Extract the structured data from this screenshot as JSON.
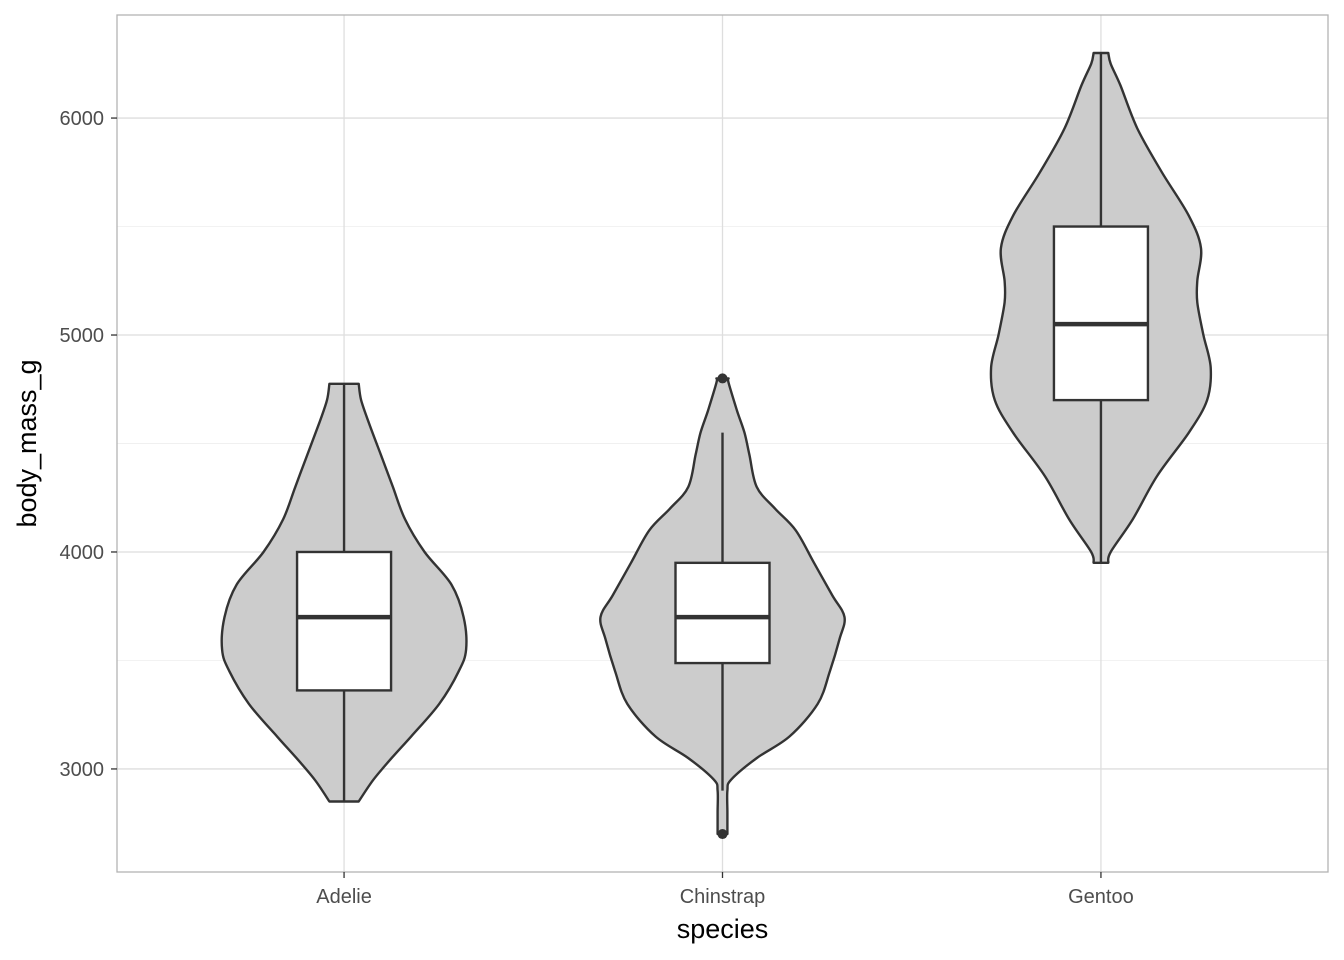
{
  "chart_data": {
    "type": "violin",
    "xlabel": "species",
    "ylabel": "body_mass_g",
    "categories": [
      "Adelie",
      "Chinstrap",
      "Gentoo"
    ],
    "ylim": [
      2525,
      6475
    ],
    "yticks": [
      3000,
      4000,
      5000,
      6000
    ],
    "grid": true,
    "colors": {
      "violin_fill": "#cccccc",
      "stroke": "#333333",
      "box_fill": "#ffffff",
      "grid": "#dedede",
      "panel_border": "#b3b3b3"
    },
    "violins": [
      {
        "species": "Adelie",
        "min": 2850,
        "max": 4775,
        "density_profile": [
          [
            2850,
            0.12
          ],
          [
            2950,
            0.24
          ],
          [
            3050,
            0.39
          ],
          [
            3150,
            0.55
          ],
          [
            3300,
            0.78
          ],
          [
            3450,
            0.94
          ],
          [
            3550,
            1.0
          ],
          [
            3700,
            0.98
          ],
          [
            3850,
            0.88
          ],
          [
            4000,
            0.66
          ],
          [
            4150,
            0.5
          ],
          [
            4300,
            0.4
          ],
          [
            4450,
            0.3
          ],
          [
            4600,
            0.2
          ],
          [
            4700,
            0.14
          ],
          [
            4775,
            0.12
          ]
        ],
        "box": {
          "q1": 3362,
          "median": 3700,
          "q3": 4000,
          "whisker_low": 2850,
          "whisker_high": 4775
        },
        "outliers": []
      },
      {
        "species": "Chinstrap",
        "min": 2700,
        "max": 4800,
        "density_profile": [
          [
            2700,
            0.04
          ],
          [
            2800,
            0.04
          ],
          [
            2900,
            0.04
          ],
          [
            2950,
            0.07
          ],
          [
            3050,
            0.28
          ],
          [
            3150,
            0.55
          ],
          [
            3300,
            0.78
          ],
          [
            3450,
            0.88
          ],
          [
            3600,
            0.96
          ],
          [
            3700,
            1.0
          ],
          [
            3800,
            0.9
          ],
          [
            3950,
            0.75
          ],
          [
            4100,
            0.6
          ],
          [
            4200,
            0.43
          ],
          [
            4300,
            0.28
          ],
          [
            4450,
            0.22
          ],
          [
            4550,
            0.18
          ],
          [
            4650,
            0.12
          ],
          [
            4780,
            0.05
          ],
          [
            4800,
            0.05
          ]
        ],
        "box": {
          "q1": 3488,
          "median": 3700,
          "q3": 3950,
          "whisker_low": 2900,
          "whisker_high": 4550
        },
        "outliers": [
          4800,
          2700
        ]
      },
      {
        "species": "Gentoo",
        "min": 3950,
        "max": 6300,
        "density_profile": [
          [
            3950,
            0.06
          ],
          [
            4000,
            0.08
          ],
          [
            4150,
            0.26
          ],
          [
            4350,
            0.46
          ],
          [
            4550,
            0.72
          ],
          [
            4700,
            0.87
          ],
          [
            4850,
            0.9
          ],
          [
            5000,
            0.84
          ],
          [
            5150,
            0.79
          ],
          [
            5250,
            0.79
          ],
          [
            5400,
            0.82
          ],
          [
            5550,
            0.72
          ],
          [
            5750,
            0.5
          ],
          [
            5950,
            0.3
          ],
          [
            6150,
            0.16
          ],
          [
            6250,
            0.08
          ],
          [
            6300,
            0.06
          ]
        ],
        "box": {
          "q1": 4700,
          "median": 5050,
          "q3": 5500,
          "whisker_low": 3950,
          "whisker_high": 6300
        },
        "outliers": []
      }
    ]
  }
}
